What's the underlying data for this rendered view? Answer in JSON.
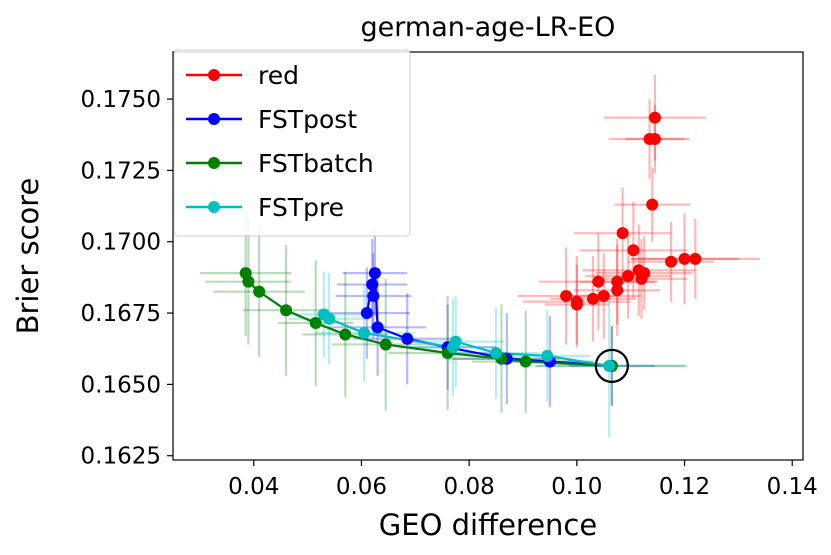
{
  "chart_data": {
    "type": "scatter",
    "title": "german-age-LR-EO",
    "xlabel": "GEO difference",
    "ylabel": "Brier score",
    "xlim": [
      0.025,
      0.142
    ],
    "ylim": [
      0.16235,
      0.17665
    ],
    "xticks": [
      0.04,
      0.06,
      0.08,
      0.1,
      0.12,
      0.14
    ],
    "yticks": [
      0.1625,
      0.165,
      0.1675,
      0.17,
      0.1725,
      0.175
    ],
    "xtick_labels": [
      "0.04",
      "0.06",
      "0.08",
      "0.10",
      "0.12",
      "0.14"
    ],
    "ytick_labels": [
      "0.1625",
      "0.1650",
      "0.1675",
      "0.1700",
      "0.1725",
      "0.1750"
    ],
    "legend_position": "top-left",
    "highlight_point": {
      "x": 0.1065,
      "y": 0.16565
    },
    "series": [
      {
        "name": "red",
        "color": "#ff0000",
        "line": false,
        "points": [
          {
            "x": 0.1145,
            "y": 0.17435,
            "ex": 0.0095,
            "ey": 0.0015
          },
          {
            "x": 0.1135,
            "y": 0.1736,
            "ex": 0.0075,
            "ey": 0.0014
          },
          {
            "x": 0.1145,
            "y": 0.1736,
            "ex": 0.0055,
            "ey": 0.0012
          },
          {
            "x": 0.114,
            "y": 0.1713,
            "ex": 0.007,
            "ey": 0.0013
          },
          {
            "x": 0.1085,
            "y": 0.1703,
            "ex": 0.009,
            "ey": 0.0016
          },
          {
            "x": 0.1105,
            "y": 0.1697,
            "ex": 0.01,
            "ey": 0.0017
          },
          {
            "x": 0.1115,
            "y": 0.169,
            "ex": 0.0105,
            "ey": 0.0016
          },
          {
            "x": 0.1095,
            "y": 0.1688,
            "ex": 0.008,
            "ey": 0.0015
          },
          {
            "x": 0.112,
            "y": 0.1687,
            "ex": 0.0085,
            "ey": 0.0014
          },
          {
            "x": 0.1125,
            "y": 0.1689,
            "ex": 0.009,
            "ey": 0.0013
          },
          {
            "x": 0.1175,
            "y": 0.1693,
            "ex": 0.008,
            "ey": 0.0014
          },
          {
            "x": 0.12,
            "y": 0.1694,
            "ex": 0.01,
            "ey": 0.0016
          },
          {
            "x": 0.122,
            "y": 0.1694,
            "ex": 0.012,
            "ey": 0.0014
          },
          {
            "x": 0.104,
            "y": 0.1686,
            "ex": 0.011,
            "ey": 0.0017
          },
          {
            "x": 0.1075,
            "y": 0.1686,
            "ex": 0.007,
            "ey": 0.0015
          },
          {
            "x": 0.1075,
            "y": 0.1683,
            "ex": 0.008,
            "ey": 0.0016
          },
          {
            "x": 0.098,
            "y": 0.1681,
            "ex": 0.009,
            "ey": 0.0017
          },
          {
            "x": 0.1,
            "y": 0.1679,
            "ex": 0.01,
            "ey": 0.0016
          },
          {
            "x": 0.103,
            "y": 0.168,
            "ex": 0.008,
            "ey": 0.0015
          },
          {
            "x": 0.1,
            "y": 0.1678,
            "ex": 0.006,
            "ey": 0.0014
          },
          {
            "x": 0.105,
            "y": 0.1681,
            "ex": 0.007,
            "ey": 0.0015
          }
        ]
      },
      {
        "name": "FSTpost",
        "color": "#0000ff",
        "line": true,
        "points": [
          {
            "x": 0.0625,
            "y": 0.1689,
            "ex": 0.006,
            "ey": 0.0015
          },
          {
            "x": 0.062,
            "y": 0.1685,
            "ex": 0.0065,
            "ey": 0.0016
          },
          {
            "x": 0.0622,
            "y": 0.1681,
            "ex": 0.007,
            "ey": 0.0015
          },
          {
            "x": 0.061,
            "y": 0.1675,
            "ex": 0.008,
            "ey": 0.0016
          },
          {
            "x": 0.063,
            "y": 0.167,
            "ex": 0.009,
            "ey": 0.0017
          },
          {
            "x": 0.0685,
            "y": 0.1666,
            "ex": 0.01,
            "ey": 0.0016
          },
          {
            "x": 0.076,
            "y": 0.1663,
            "ex": 0.009,
            "ey": 0.0015
          },
          {
            "x": 0.087,
            "y": 0.1659,
            "ex": 0.01,
            "ey": 0.0016
          },
          {
            "x": 0.095,
            "y": 0.1658,
            "ex": 0.008,
            "ey": 0.0016
          },
          {
            "x": 0.1065,
            "y": 0.16565,
            "ex": 0.008,
            "ey": 0.0014
          }
        ]
      },
      {
        "name": "FSTbatch",
        "color": "#008000",
        "line": true,
        "points": [
          {
            "x": 0.0385,
            "y": 0.1689,
            "ex": 0.0085,
            "ey": 0.0022
          },
          {
            "x": 0.039,
            "y": 0.1686,
            "ex": 0.008,
            "ey": 0.0022
          },
          {
            "x": 0.041,
            "y": 0.16825,
            "ex": 0.0085,
            "ey": 0.0023
          },
          {
            "x": 0.046,
            "y": 0.1676,
            "ex": 0.008,
            "ey": 0.0023
          },
          {
            "x": 0.0515,
            "y": 0.16715,
            "ex": 0.007,
            "ey": 0.0022
          },
          {
            "x": 0.057,
            "y": 0.16675,
            "ex": 0.008,
            "ey": 0.0022
          },
          {
            "x": 0.0645,
            "y": 0.1664,
            "ex": 0.01,
            "ey": 0.0023
          },
          {
            "x": 0.076,
            "y": 0.1661,
            "ex": 0.011,
            "ey": 0.002
          },
          {
            "x": 0.086,
            "y": 0.1659,
            "ex": 0.01,
            "ey": 0.0019
          },
          {
            "x": 0.0905,
            "y": 0.1658,
            "ex": 0.01,
            "ey": 0.0018
          },
          {
            "x": 0.1065,
            "y": 0.16565,
            "ex": 0.014,
            "ey": 0.0014
          }
        ]
      },
      {
        "name": "FSTpre",
        "color": "#00bfbf",
        "line": true,
        "points": [
          {
            "x": 0.053,
            "y": 0.16745,
            "ex": 0.008,
            "ey": 0.0015
          },
          {
            "x": 0.054,
            "y": 0.1673,
            "ex": 0.0075,
            "ey": 0.0016
          },
          {
            "x": 0.0605,
            "y": 0.1668,
            "ex": 0.009,
            "ey": 0.0017
          },
          {
            "x": 0.0775,
            "y": 0.1665,
            "ex": 0.009,
            "ey": 0.0016
          },
          {
            "x": 0.077,
            "y": 0.1663,
            "ex": 0.008,
            "ey": 0.0017
          },
          {
            "x": 0.085,
            "y": 0.1661,
            "ex": 0.008,
            "ey": 0.0016
          },
          {
            "x": 0.0945,
            "y": 0.166,
            "ex": 0.008,
            "ey": 0.0016
          },
          {
            "x": 0.106,
            "y": 0.16565,
            "ex": 0.014,
            "ey": 0.0025
          }
        ]
      }
    ]
  }
}
